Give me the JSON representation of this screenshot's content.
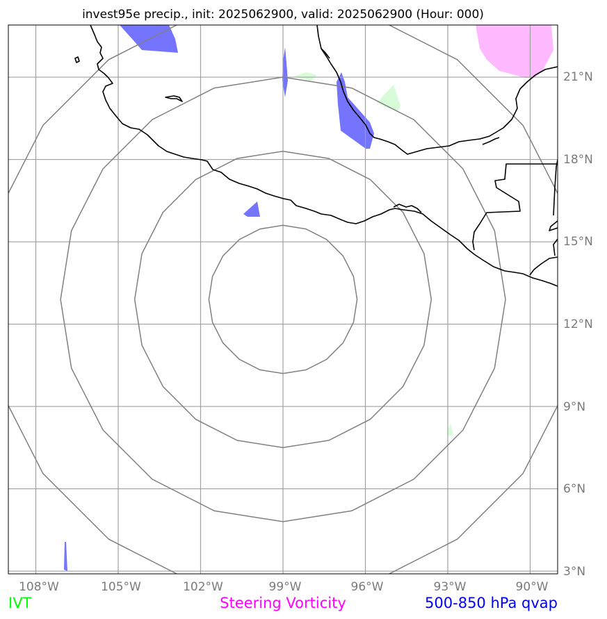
{
  "title": "invest95e precip., init: 2025062900, valid: 2025062900 (Hour: 000)",
  "map": {
    "lon_range": [
      -109,
      -89
    ],
    "lat_range": [
      2.9,
      22.9
    ],
    "longitude_ticks": [
      {
        "value": -108,
        "label": "108°W"
      },
      {
        "value": -105,
        "label": "105°W"
      },
      {
        "value": -102,
        "label": "102°W"
      },
      {
        "value": -99,
        "label": "99°W"
      },
      {
        "value": -96,
        "label": "96°W"
      },
      {
        "value": -93,
        "label": "93°W"
      },
      {
        "value": -90,
        "label": "90°W"
      }
    ],
    "latitude_ticks": [
      {
        "value": 21,
        "label": "21°N"
      },
      {
        "value": 18,
        "label": "18°N"
      },
      {
        "value": 15,
        "label": "15°N"
      },
      {
        "value": 12,
        "label": "12°N"
      },
      {
        "value": 9,
        "label": "9°N"
      },
      {
        "value": 6,
        "label": "6°N"
      },
      {
        "value": 3,
        "label": "3°N"
      }
    ],
    "storm_center": {
      "lon": -99,
      "lat": 12.9
    },
    "range_ring_radii_deg": [
      2.7,
      5.4,
      8.1,
      10.8
    ],
    "gridlines": true,
    "colors": {
      "gridline": "#a0a0a0",
      "range_ring": "#808080",
      "coastline": "#000000",
      "qvap": "#7474ff",
      "ivt": "#d8fbd8",
      "vorticity": "#ffb9ff"
    }
  },
  "legend": [
    {
      "label": "IVT",
      "color": "#00ff00"
    },
    {
      "label": "Steering Vorticity",
      "color": "#ff00ff"
    },
    {
      "label": "500-850 hPa qvap",
      "color": "#0000ff"
    }
  ]
}
